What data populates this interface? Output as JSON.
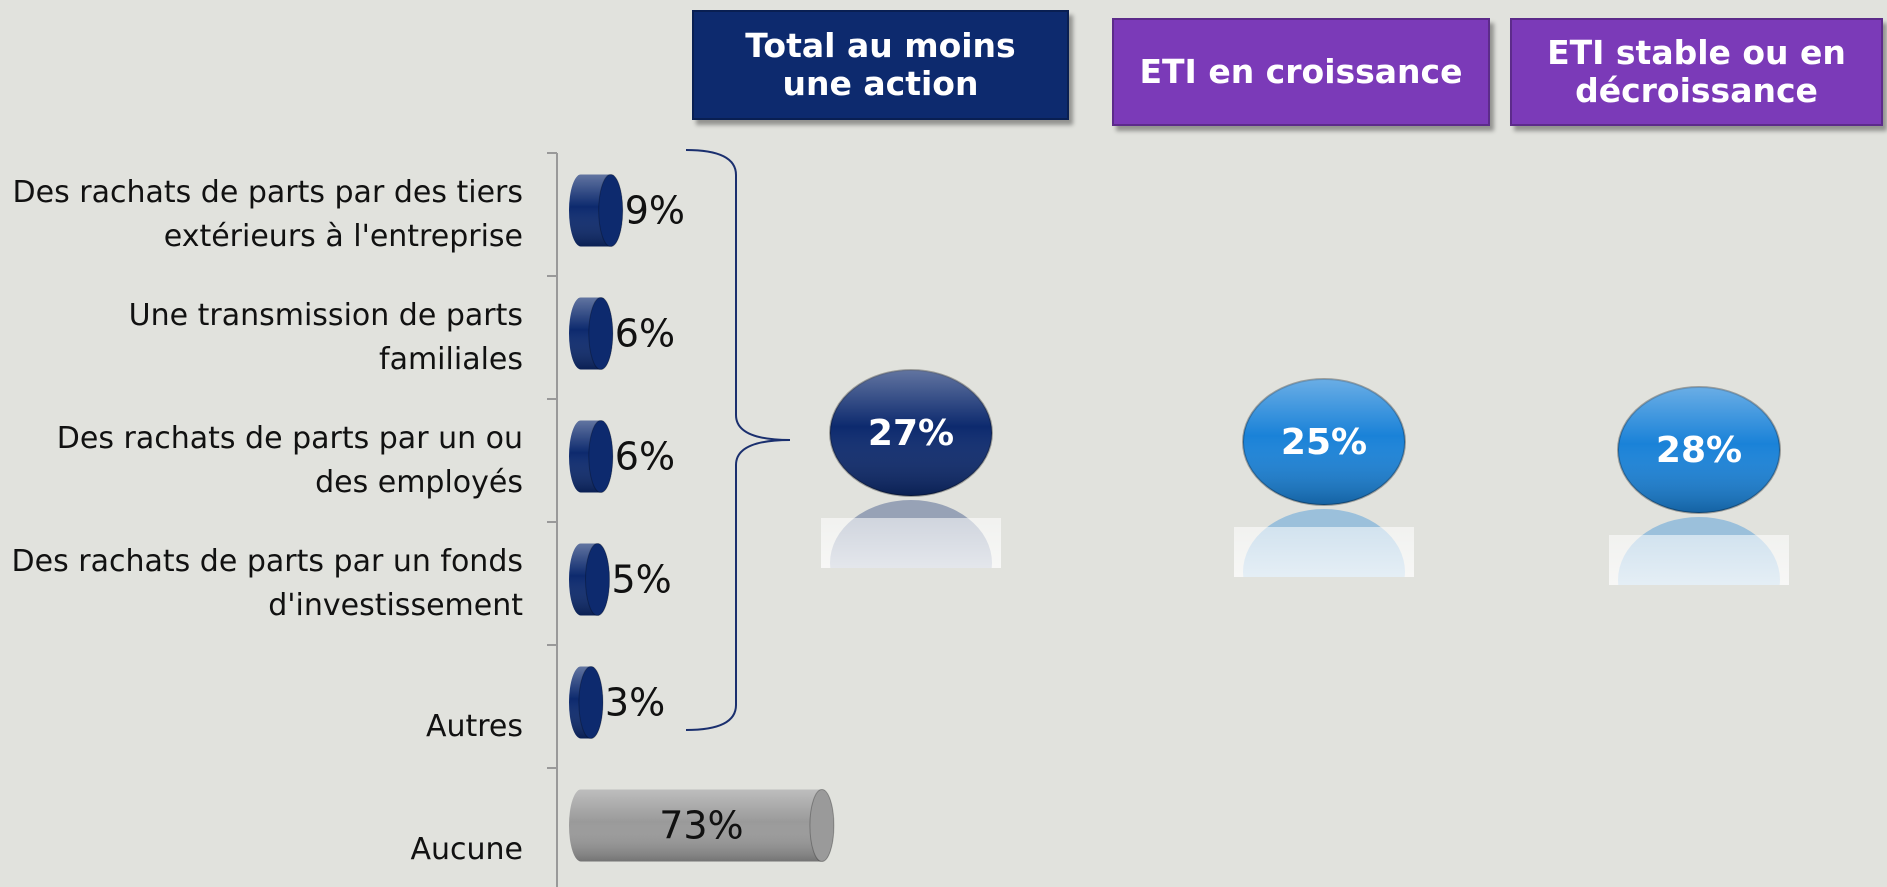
{
  "chart_data": {
    "type": "bar",
    "orientation": "horizontal",
    "categories": [
      "Des rachats de parts par des tiers extérieurs à l'entreprise",
      "Une transmission de parts familiales",
      "Des rachats de parts par un ou des employés",
      "Des rachats de parts par un fonds d'investissement",
      "Autres",
      "Aucune"
    ],
    "values": [
      9,
      6,
      6,
      5,
      3,
      73
    ],
    "value_labels": [
      "9%",
      "6%",
      "6%",
      "5%",
      "3%",
      "73%"
    ],
    "colors": [
      "#0d2a6e",
      "#0d2a6e",
      "#0d2a6e",
      "#0d2a6e",
      "#0d2a6e",
      "#9a9a9a"
    ],
    "groups": [
      {
        "name": "Total au moins une action",
        "value": 27,
        "value_label": "27%",
        "header_color": "#0d2a6e",
        "color": "#0d2a6e"
      },
      {
        "name": "ETI en croissance",
        "value": 25,
        "value_label": "25%",
        "header_color": "#7b3ab8",
        "color": "#1a82d8"
      },
      {
        "name": "ETI stable ou en décroissance",
        "value": 28,
        "value_label": "28%",
        "header_color": "#7b3ab8",
        "color": "#1a82d8"
      }
    ]
  }
}
